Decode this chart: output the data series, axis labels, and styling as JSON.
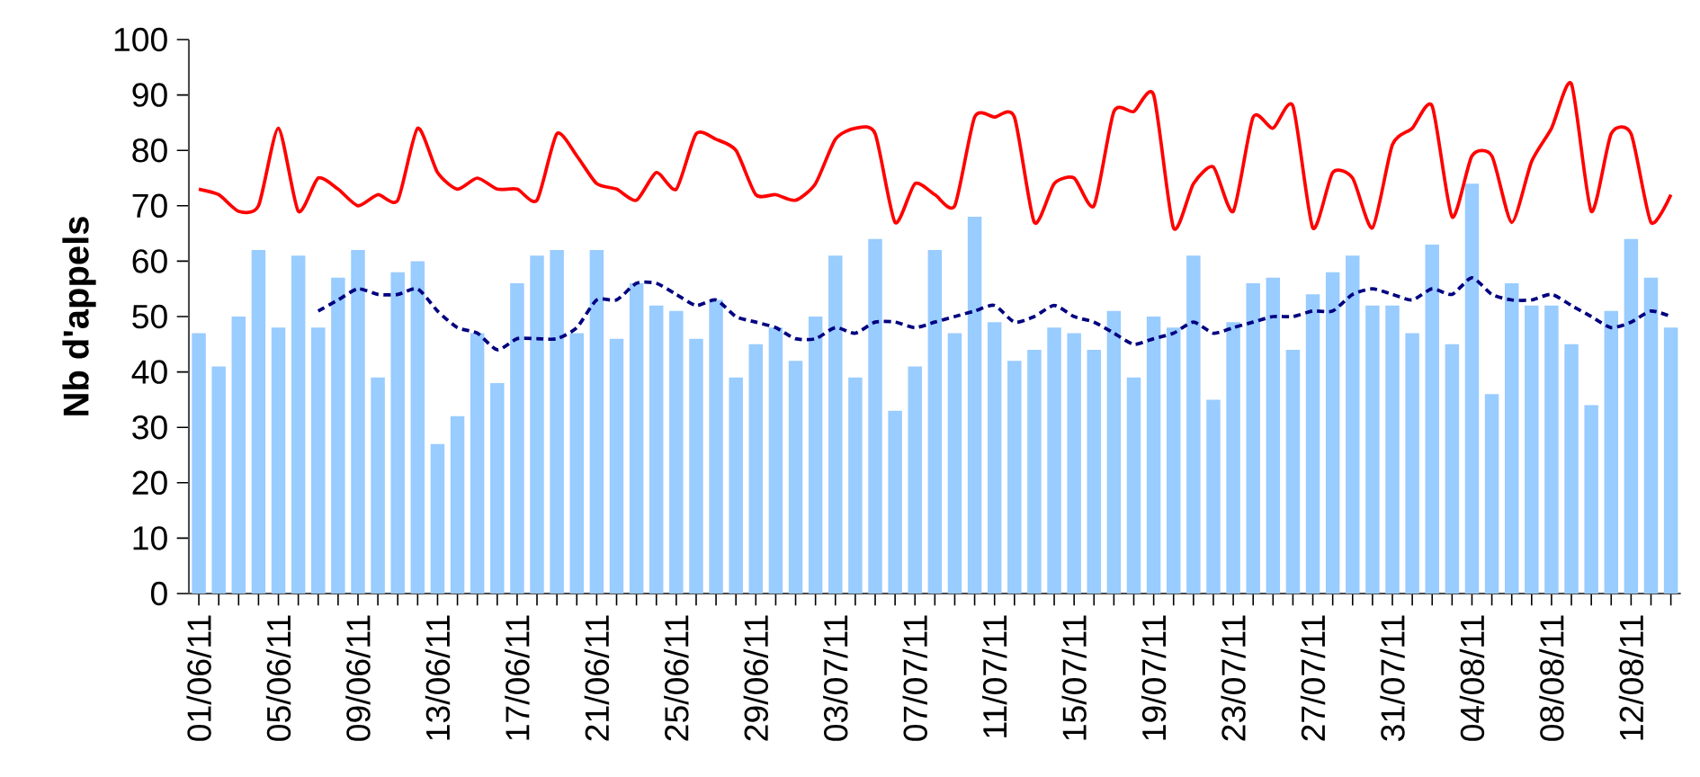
{
  "chart_data": {
    "type": "bar",
    "ylabel": "Nb d'appels",
    "categories": [
      "01/06/11",
      null,
      null,
      null,
      "05/06/11",
      null,
      null,
      null,
      "09/06/11",
      null,
      null,
      null,
      "13/06/11",
      null,
      null,
      null,
      "17/06/11",
      null,
      null,
      null,
      "21/06/11",
      null,
      null,
      null,
      "25/06/11",
      null,
      null,
      null,
      "29/06/11",
      null,
      null,
      null,
      "03/07/11",
      null,
      null,
      null,
      "07/07/11",
      null,
      null,
      null,
      "11/07/11",
      null,
      null,
      null,
      "15/07/11",
      null,
      null,
      null,
      "19/07/11",
      null,
      null,
      null,
      "23/07/11",
      null,
      null,
      null,
      "27/07/11",
      null,
      null,
      null,
      "31/07/11",
      null,
      null,
      null,
      "04/08/11",
      null,
      null,
      null,
      "08/08/11",
      null,
      null,
      null,
      "12/08/11",
      null,
      null
    ],
    "series": [
      {
        "color": "#99ccff",
        "values": [
          47,
          41,
          50,
          62,
          48,
          61,
          48,
          57,
          62,
          39,
          58,
          60,
          27,
          32,
          47,
          38,
          56,
          61,
          62,
          47,
          62,
          46,
          56,
          52,
          51,
          46,
          53,
          39,
          45,
          48,
          42,
          50,
          61,
          39,
          64,
          33,
          41,
          62,
          47,
          68,
          49,
          42,
          44,
          48,
          47,
          44,
          51,
          39,
          50,
          48,
          61,
          35,
          49,
          56,
          57,
          44,
          54,
          58,
          61,
          52,
          52,
          47,
          63,
          45,
          74,
          36,
          56,
          52,
          52,
          45,
          34,
          51,
          64,
          57,
          48
        ]
      },
      {
        "type": "line",
        "color": "#ff0000",
        "line_style": "solid",
        "values": [
          73,
          72,
          69,
          70,
          84,
          69,
          75,
          73,
          70,
          72,
          71,
          84,
          76,
          73,
          75,
          73,
          73,
          71,
          83,
          79,
          74,
          73,
          71,
          76,
          73,
          83,
          82,
          80,
          72,
          72,
          71,
          74,
          82,
          84,
          83,
          67,
          74,
          72,
          70,
          86,
          86,
          86,
          67,
          74,
          75,
          70,
          87,
          87,
          90,
          66,
          74,
          77,
          69,
          86,
          84,
          88,
          66,
          76,
          75,
          66,
          81,
          84,
          88,
          68,
          79,
          79,
          67,
          78,
          84,
          92,
          69,
          83,
          83,
          67,
          72
        ]
      },
      {
        "type": "line",
        "color": "#000080",
        "line_style": "dashed",
        "values": [
          null,
          null,
          null,
          null,
          null,
          null,
          51,
          53,
          55,
          54,
          54,
          55,
          51,
          48,
          47,
          44,
          46,
          46,
          46,
          48,
          53,
          53,
          56,
          56,
          54,
          52,
          53,
          50,
          49,
          48,
          46,
          46,
          48,
          47,
          49,
          49,
          48,
          49,
          50,
          51,
          52,
          49,
          50,
          52,
          50,
          49,
          47,
          45,
          46,
          47,
          49,
          47,
          48,
          49,
          50,
          50,
          51,
          51,
          54,
          55,
          54,
          53,
          55,
          54,
          57,
          54,
          53,
          53,
          54,
          52,
          50,
          48,
          49,
          51,
          50
        ]
      }
    ],
    "ylim": [
      0,
      100
    ],
    "yticks": [
      0,
      10,
      20,
      30,
      40,
      50,
      60,
      70,
      80,
      90,
      100
    ]
  }
}
